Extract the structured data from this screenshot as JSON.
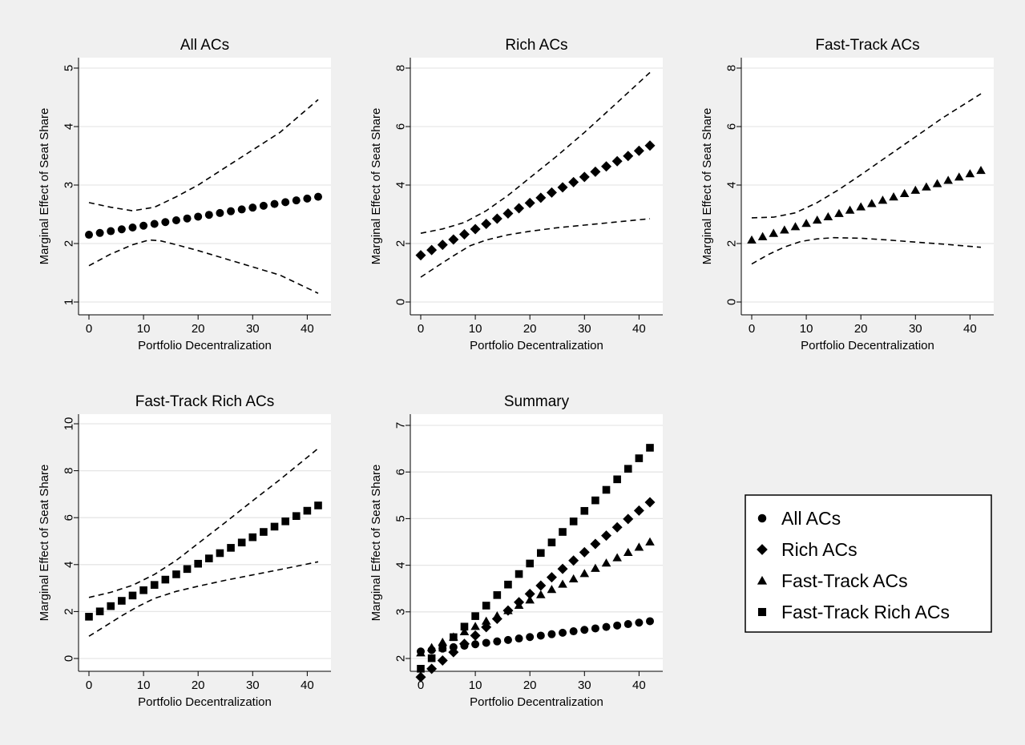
{
  "chart_data": [
    {
      "type": "scatter",
      "title": "All ACs",
      "xlabel": "Portfolio Decentralization",
      "ylabel": "Marginal Effect of Seat Share",
      "xlim": [
        0,
        42
      ],
      "ylim": [
        1,
        5
      ],
      "xticks": [
        "0",
        "10",
        "20",
        "30",
        "40"
      ],
      "yticks": [
        "1",
        "2",
        "3",
        "4",
        "5"
      ],
      "grid": true,
      "marker": "circle",
      "point": {
        "x0": 0,
        "x1": 42,
        "y0": 2.15,
        "y1": 2.8
      },
      "ci_upper": [
        [
          0,
          2.7
        ],
        [
          4,
          2.62
        ],
        [
          8,
          2.56
        ],
        [
          12,
          2.62
        ],
        [
          16,
          2.8
        ],
        [
          20,
          3.0
        ],
        [
          25,
          3.3
        ],
        [
          30,
          3.6
        ],
        [
          35,
          3.9
        ],
        [
          42,
          4.46
        ]
      ],
      "ci_lower": [
        [
          0,
          1.62
        ],
        [
          4,
          1.82
        ],
        [
          8,
          1.98
        ],
        [
          11,
          2.06
        ],
        [
          13,
          2.05
        ],
        [
          16,
          1.98
        ],
        [
          20,
          1.88
        ],
        [
          25,
          1.74
        ],
        [
          30,
          1.6
        ],
        [
          35,
          1.46
        ],
        [
          42,
          1.15
        ]
      ]
    },
    {
      "type": "scatter",
      "title": "Rich ACs",
      "xlabel": "Portfolio Decentralization",
      "ylabel": "Marginal Effect of Seat Share",
      "xlim": [
        0,
        42
      ],
      "ylim": [
        0,
        8
      ],
      "xticks": [
        "0",
        "10",
        "20",
        "30",
        "40"
      ],
      "yticks": [
        "0",
        "2",
        "4",
        "6",
        "8"
      ],
      "grid": true,
      "marker": "diamond",
      "point": {
        "x0": 0,
        "x1": 42,
        "y0": 1.6,
        "y1": 5.35
      },
      "ci_upper": [
        [
          0,
          2.35
        ],
        [
          4,
          2.5
        ],
        [
          8,
          2.72
        ],
        [
          12,
          3.12
        ],
        [
          16,
          3.65
        ],
        [
          20,
          4.25
        ],
        [
          25,
          5.0
        ],
        [
          30,
          5.8
        ],
        [
          35,
          6.65
        ],
        [
          42,
          7.85
        ]
      ],
      "ci_lower": [
        [
          0,
          0.85
        ],
        [
          3,
          1.22
        ],
        [
          6,
          1.58
        ],
        [
          9,
          1.92
        ],
        [
          12,
          2.12
        ],
        [
          16,
          2.3
        ],
        [
          20,
          2.42
        ],
        [
          25,
          2.54
        ],
        [
          30,
          2.63
        ],
        [
          35,
          2.72
        ],
        [
          42,
          2.85
        ]
      ]
    },
    {
      "type": "scatter",
      "title": "Fast-Track ACs",
      "xlabel": "Portfolio Decentralization",
      "ylabel": "Marginal Effect of Seat Share",
      "xlim": [
        0,
        42
      ],
      "ylim": [
        0,
        8
      ],
      "xticks": [
        "0",
        "10",
        "20",
        "30",
        "40"
      ],
      "yticks": [
        "0",
        "2",
        "4",
        "6",
        "8"
      ],
      "grid": true,
      "marker": "triangle",
      "point": {
        "x0": 0,
        "x1": 42,
        "y0": 2.12,
        "y1": 4.5
      },
      "ci_upper": [
        [
          0,
          2.88
        ],
        [
          4,
          2.9
        ],
        [
          8,
          3.05
        ],
        [
          12,
          3.4
        ],
        [
          16,
          3.85
        ],
        [
          20,
          4.35
        ],
        [
          25,
          5.0
        ],
        [
          30,
          5.65
        ],
        [
          35,
          6.3
        ],
        [
          42,
          7.12
        ]
      ],
      "ci_lower": [
        [
          0,
          1.3
        ],
        [
          3,
          1.62
        ],
        [
          6,
          1.88
        ],
        [
          9,
          2.07
        ],
        [
          12,
          2.16
        ],
        [
          15,
          2.2
        ],
        [
          20,
          2.18
        ],
        [
          25,
          2.12
        ],
        [
          30,
          2.05
        ],
        [
          35,
          1.98
        ],
        [
          42,
          1.87
        ]
      ]
    },
    {
      "type": "scatter",
      "title": "Fast-Track Rich ACs",
      "xlabel": "Portfolio Decentralization",
      "ylabel": "Marginal Effect of Seat Share",
      "xlim": [
        0,
        42
      ],
      "ylim": [
        0,
        10
      ],
      "xticks": [
        "0",
        "10",
        "20",
        "30",
        "40"
      ],
      "yticks": [
        "0",
        "2",
        "4",
        "6",
        "8",
        "10"
      ],
      "grid": true,
      "marker": "square",
      "point": {
        "x0": 0,
        "x1": 42,
        "y0": 1.78,
        "y1": 6.52
      },
      "ci_upper": [
        [
          0,
          2.6
        ],
        [
          4,
          2.82
        ],
        [
          8,
          3.12
        ],
        [
          12,
          3.58
        ],
        [
          16,
          4.18
        ],
        [
          20,
          4.9
        ],
        [
          25,
          5.8
        ],
        [
          30,
          6.72
        ],
        [
          35,
          7.62
        ],
        [
          42,
          8.95
        ]
      ],
      "ci_lower": [
        [
          0,
          0.95
        ],
        [
          3,
          1.38
        ],
        [
          6,
          1.82
        ],
        [
          9,
          2.22
        ],
        [
          12,
          2.56
        ],
        [
          16,
          2.86
        ],
        [
          20,
          3.08
        ],
        [
          25,
          3.33
        ],
        [
          30,
          3.56
        ],
        [
          35,
          3.79
        ],
        [
          42,
          4.12
        ]
      ]
    },
    {
      "type": "scatter",
      "title": "Summary",
      "xlabel": "Portfolio Decentralization",
      "ylabel": "Marginal Effect of Seat Share",
      "xlim": [
        0,
        42
      ],
      "ylim": [
        2,
        7
      ],
      "xticks": [
        "0",
        "10",
        "20",
        "30",
        "40"
      ],
      "yticks": [
        "2",
        "3",
        "4",
        "5",
        "6",
        "7"
      ],
      "grid": true,
      "legend_position": "right",
      "series": [
        {
          "name": "All ACs",
          "marker": "circle",
          "x0": 0,
          "x1": 42,
          "y0": 2.15,
          "y1": 2.8
        },
        {
          "name": "Rich ACs",
          "marker": "diamond",
          "x0": 0,
          "x1": 42,
          "y0": 1.6,
          "y1": 5.35
        },
        {
          "name": "Fast-Track ACs",
          "marker": "triangle",
          "x0": 0,
          "x1": 42,
          "y0": 2.12,
          "y1": 4.5
        },
        {
          "name": "Fast-Track Rich ACs",
          "marker": "square",
          "x0": 0,
          "x1": 42,
          "y0": 1.78,
          "y1": 6.52
        }
      ]
    }
  ],
  "colors": {
    "background": "#f0f0f0",
    "plot_area": "#ffffff",
    "grid": "#e6e6e6",
    "ink": "#000000"
  }
}
